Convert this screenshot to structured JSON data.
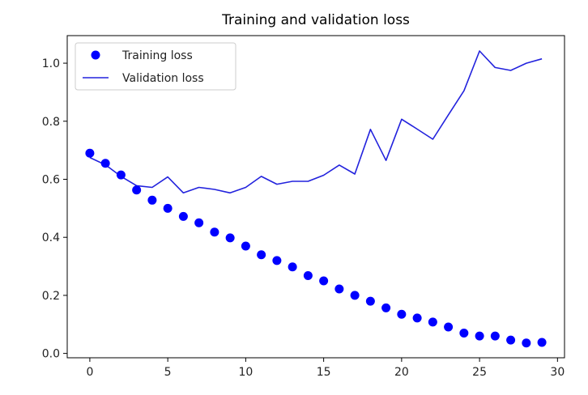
{
  "chart_data": {
    "type": "line",
    "title": "Training and validation loss",
    "xlabel": "",
    "ylabel": "",
    "xlim": [
      -1.45,
      30.45
    ],
    "ylim": [
      -0.015,
      1.095
    ],
    "xticks": [
      0,
      5,
      10,
      15,
      20,
      25,
      30
    ],
    "yticks": [
      0.0,
      0.2,
      0.4,
      0.6,
      0.8,
      1.0
    ],
    "xtick_labels": [
      "0",
      "5",
      "10",
      "15",
      "20",
      "25",
      "30"
    ],
    "ytick_labels": [
      "0.0",
      "0.2",
      "0.4",
      "0.6",
      "0.8",
      "1.0"
    ],
    "grid": false,
    "legend_position": "top-left",
    "x": [
      0,
      1,
      2,
      3,
      4,
      5,
      6,
      7,
      8,
      9,
      10,
      11,
      12,
      13,
      14,
      15,
      16,
      17,
      18,
      19,
      20,
      21,
      22,
      23,
      24,
      25,
      26,
      27,
      28,
      29
    ],
    "series": [
      {
        "name": "Training loss",
        "style": "markers",
        "color": "#0000ff",
        "values": [
          0.69,
          0.655,
          0.615,
          0.563,
          0.528,
          0.5,
          0.472,
          0.45,
          0.418,
          0.398,
          0.37,
          0.34,
          0.32,
          0.298,
          0.268,
          0.25,
          0.222,
          0.2,
          0.18,
          0.157,
          0.135,
          0.122,
          0.108,
          0.091,
          0.07,
          0.06,
          0.06,
          0.046,
          0.036,
          0.038
        ]
      },
      {
        "name": "Validation loss",
        "style": "line",
        "color": "#2222dd",
        "values": [
          0.675,
          0.65,
          0.61,
          0.578,
          0.572,
          0.608,
          0.553,
          0.572,
          0.565,
          0.553,
          0.572,
          0.61,
          0.583,
          0.593,
          0.593,
          0.614,
          0.649,
          0.618,
          0.772,
          0.665,
          0.807,
          0.773,
          0.738,
          0.822,
          0.905,
          1.042,
          0.985,
          0.975,
          1.0,
          1.015
        ]
      }
    ]
  }
}
